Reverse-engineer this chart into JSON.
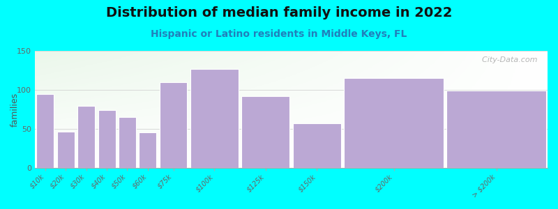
{
  "title": "Distribution of median family income in 2022",
  "subtitle": "Hispanic or Latino residents in Middle Keys, FL",
  "categories": [
    "$10k",
    "$20k",
    "$30k",
    "$40k",
    "$50k",
    "$60k",
    "$75k",
    "$100k",
    "$125k",
    "$150k",
    "$200k",
    "> $200k"
  ],
  "values": [
    95,
    47,
    80,
    74,
    65,
    46,
    110,
    127,
    92,
    57,
    115,
    99
  ],
  "widths": [
    1,
    1,
    1,
    1,
    1,
    1,
    1.5,
    2.5,
    2.5,
    2.5,
    5,
    5
  ],
  "bar_color": "#BBA8D4",
  "bar_edge_color": "#FFFFFF",
  "bg_color": "#00FFFF",
  "ylabel": "families",
  "ylim": [
    0,
    150
  ],
  "yticks": [
    0,
    50,
    100,
    150
  ],
  "title_fontsize": 14,
  "subtitle_fontsize": 10,
  "watermark": "  City-Data.com"
}
